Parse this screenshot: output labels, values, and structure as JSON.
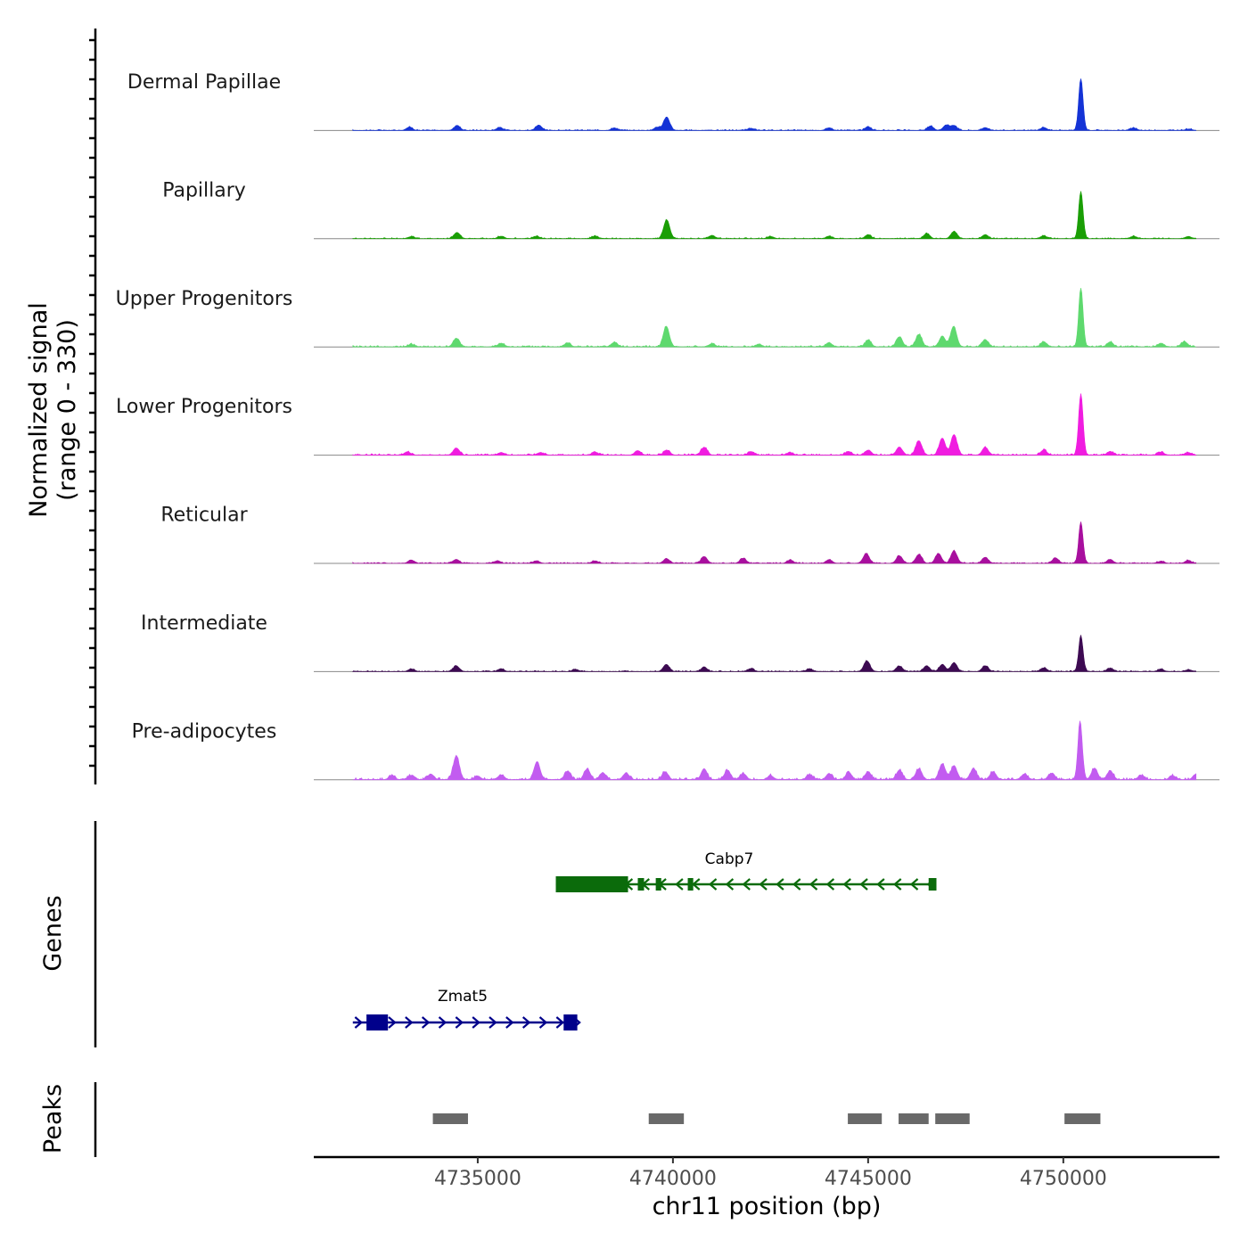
{
  "chart_data": {
    "type": "area",
    "title": "",
    "xlabel": "chr11 position (bp)",
    "ylabel": "Normalized signal",
    "ylabel_sub": "(range 0 - 330)",
    "xlim": [
      4730800,
      4754000
    ],
    "ylim": [
      0,
      330
    ],
    "x_ticks": [
      4735000,
      4740000,
      4745000,
      4750000
    ],
    "x_tick_labels": [
      "4735000",
      "4740000",
      "4745000",
      "4750000"
    ],
    "tracks": [
      {
        "name": "Dermal Papillae",
        "color": "#1433d6",
        "peaks": [
          [
            4733250,
            18
          ],
          [
            4734470,
            28
          ],
          [
            4735560,
            17
          ],
          [
            4736560,
            30
          ],
          [
            4738500,
            14
          ],
          [
            4739600,
            18
          ],
          [
            4739840,
            75
          ],
          [
            4742000,
            12
          ],
          [
            4744000,
            14
          ],
          [
            4745000,
            20
          ],
          [
            4746600,
            24
          ],
          [
            4747000,
            30
          ],
          [
            4747200,
            28
          ],
          [
            4748000,
            16
          ],
          [
            4749500,
            16
          ],
          [
            4750450,
            290
          ],
          [
            4751800,
            14
          ],
          [
            4753200,
            8
          ]
        ],
        "noise": 6
      },
      {
        "name": "Papillary",
        "color": "#1a9e05",
        "peaks": [
          [
            4733300,
            12
          ],
          [
            4734470,
            35
          ],
          [
            4735600,
            14
          ],
          [
            4736500,
            14
          ],
          [
            4738000,
            14
          ],
          [
            4739840,
            105
          ],
          [
            4741000,
            18
          ],
          [
            4742500,
            12
          ],
          [
            4744000,
            14
          ],
          [
            4745000,
            22
          ],
          [
            4746500,
            28
          ],
          [
            4747200,
            40
          ],
          [
            4748000,
            22
          ],
          [
            4749500,
            16
          ],
          [
            4750450,
            265
          ],
          [
            4751800,
            14
          ],
          [
            4753200,
            12
          ]
        ],
        "noise": 6
      },
      {
        "name": "Upper Progenitors",
        "color": "#5ed96e",
        "peaks": [
          [
            4733300,
            14
          ],
          [
            4734450,
            48
          ],
          [
            4735600,
            20
          ],
          [
            4737300,
            22
          ],
          [
            4738500,
            24
          ],
          [
            4739830,
            115
          ],
          [
            4741000,
            18
          ],
          [
            4742200,
            14
          ],
          [
            4744000,
            22
          ],
          [
            4745000,
            38
          ],
          [
            4745800,
            55
          ],
          [
            4746300,
            70
          ],
          [
            4746900,
            60
          ],
          [
            4747190,
            115
          ],
          [
            4748000,
            40
          ],
          [
            4749500,
            28
          ],
          [
            4750450,
            330
          ],
          [
            4751200,
            28
          ],
          [
            4752500,
            20
          ],
          [
            4753100,
            30
          ]
        ],
        "noise": 8
      },
      {
        "name": "Lower Progenitors",
        "color": "#f01ce0",
        "peaks": [
          [
            4733200,
            18
          ],
          [
            4734450,
            40
          ],
          [
            4735600,
            14
          ],
          [
            4736600,
            14
          ],
          [
            4738000,
            18
          ],
          [
            4739100,
            24
          ],
          [
            4739840,
            28
          ],
          [
            4740800,
            44
          ],
          [
            4742000,
            20
          ],
          [
            4743000,
            14
          ],
          [
            4744500,
            20
          ],
          [
            4745000,
            28
          ],
          [
            4745800,
            45
          ],
          [
            4746300,
            80
          ],
          [
            4746900,
            95
          ],
          [
            4747200,
            115
          ],
          [
            4748000,
            44
          ],
          [
            4749500,
            28
          ],
          [
            4750450,
            345
          ],
          [
            4751200,
            20
          ],
          [
            4752500,
            16
          ],
          [
            4753200,
            14
          ]
        ],
        "noise": 8
      },
      {
        "name": "Reticular",
        "color": "#a80f9e",
        "peaks": [
          [
            4733300,
            18
          ],
          [
            4734450,
            22
          ],
          [
            4735500,
            14
          ],
          [
            4736500,
            14
          ],
          [
            4738000,
            14
          ],
          [
            4739840,
            26
          ],
          [
            4740800,
            38
          ],
          [
            4741800,
            28
          ],
          [
            4743000,
            18
          ],
          [
            4744000,
            20
          ],
          [
            4744950,
            55
          ],
          [
            4745800,
            42
          ],
          [
            4746300,
            50
          ],
          [
            4746800,
            55
          ],
          [
            4747200,
            70
          ],
          [
            4748000,
            34
          ],
          [
            4749800,
            30
          ],
          [
            4750450,
            230
          ],
          [
            4751200,
            22
          ],
          [
            4752500,
            12
          ],
          [
            4753200,
            16
          ]
        ],
        "noise": 6
      },
      {
        "name": "Intermediate",
        "color": "#3d0a52",
        "peaks": [
          [
            4733300,
            14
          ],
          [
            4734450,
            32
          ],
          [
            4735600,
            14
          ],
          [
            4737500,
            12
          ],
          [
            4739830,
            40
          ],
          [
            4740800,
            24
          ],
          [
            4742000,
            16
          ],
          [
            4743500,
            14
          ],
          [
            4744970,
            60
          ],
          [
            4745800,
            30
          ],
          [
            4746500,
            32
          ],
          [
            4746900,
            40
          ],
          [
            4747200,
            50
          ],
          [
            4748000,
            32
          ],
          [
            4749500,
            20
          ],
          [
            4750450,
            200
          ],
          [
            4751200,
            18
          ],
          [
            4752500,
            12
          ],
          [
            4753200,
            10
          ]
        ],
        "noise": 6
      },
      {
        "name": "Pre-adipocytes",
        "color": "#c25cf0",
        "peaks": [
          [
            4732800,
            22
          ],
          [
            4733300,
            25
          ],
          [
            4733800,
            32
          ],
          [
            4734450,
            135
          ],
          [
            4735000,
            20
          ],
          [
            4735600,
            26
          ],
          [
            4736520,
            100
          ],
          [
            4737300,
            45
          ],
          [
            4737800,
            60
          ],
          [
            4738200,
            40
          ],
          [
            4738800,
            38
          ],
          [
            4739800,
            44
          ],
          [
            4740800,
            60
          ],
          [
            4741400,
            52
          ],
          [
            4741800,
            34
          ],
          [
            4742500,
            22
          ],
          [
            4743500,
            26
          ],
          [
            4744000,
            34
          ],
          [
            4744500,
            40
          ],
          [
            4745000,
            45
          ],
          [
            4745800,
            52
          ],
          [
            4746300,
            60
          ],
          [
            4746900,
            90
          ],
          [
            4747200,
            78
          ],
          [
            4747700,
            62
          ],
          [
            4748200,
            45
          ],
          [
            4749000,
            30
          ],
          [
            4749700,
            35
          ],
          [
            4750430,
            330
          ],
          [
            4750800,
            65
          ],
          [
            4751200,
            50
          ],
          [
            4752000,
            24
          ],
          [
            4752800,
            22
          ],
          [
            4753400,
            30
          ]
        ],
        "noise": 12
      }
    ],
    "genes": [
      {
        "name": "Cabp7",
        "strand": "-",
        "color": "#0b6b0b",
        "start": 4737000,
        "end": 4746750,
        "exons": [
          [
            4737000,
            4738850
          ],
          [
            4739100,
            4739260
          ],
          [
            4739560,
            4739700
          ],
          [
            4740380,
            4740520
          ],
          [
            4746550,
            4746750
          ]
        ]
      },
      {
        "name": "Zmat5",
        "strand": "+",
        "color": "#00008b",
        "start": 4731800,
        "end": 4737550,
        "exons": [
          [
            4732150,
            4732700
          ],
          [
            4737200,
            4737550
          ]
        ]
      }
    ],
    "peaks_track": {
      "name": "Peaks",
      "color": "#696969",
      "regions": [
        [
          4733850,
          4734750
        ],
        [
          4739380,
          4740280
        ],
        [
          4744480,
          4745350
        ],
        [
          4745780,
          4746550
        ],
        [
          4746720,
          4747600
        ],
        [
          4750030,
          4750950
        ]
      ]
    },
    "panels": [
      "Normalized signal",
      "Genes",
      "Peaks"
    ]
  }
}
